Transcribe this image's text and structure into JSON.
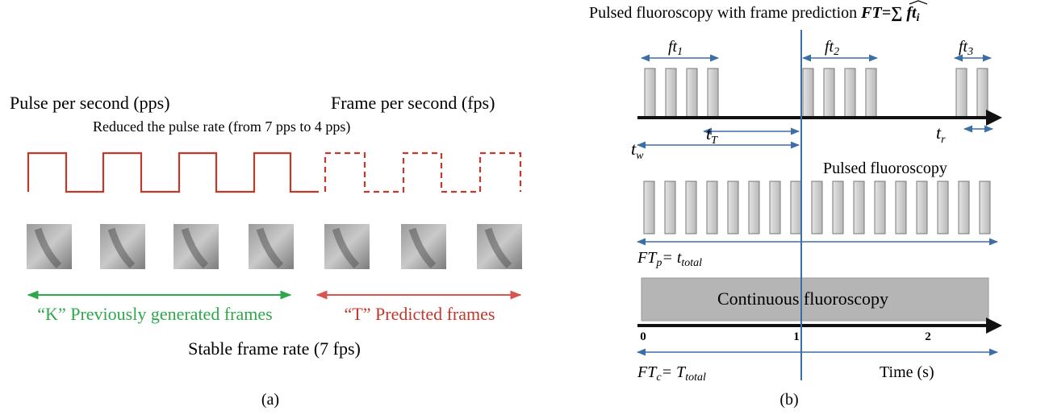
{
  "panel_a": {
    "label_pps": "Pulse per second (pps)",
    "label_fps": "Frame per second (fps)",
    "subtitle": "Reduced the pulse rate (from 7 pps to 4 pps)",
    "previous_frames": "“K” Previously generated frames",
    "predicted_frames": "“T” Predicted frames",
    "stable_rate": "Stable frame rate (7 fps)",
    "caption": "(a)"
  },
  "panel_b": {
    "title": "Pulsed fluoroscopy with frame prediction",
    "formula": {
      "lhs": "FT",
      "rhs": "=∑ ft",
      "sub": "i"
    },
    "ft1": {
      "base": "ft",
      "sub": "1"
    },
    "ft2": {
      "base": "ft",
      "sub": "2"
    },
    "ft3": {
      "base": "ft",
      "sub": "3"
    },
    "tT": {
      "base": "t",
      "sub": "T"
    },
    "tw": {
      "base": "t",
      "sub": "w"
    },
    "tr": {
      "base": "t",
      "sub": "r"
    },
    "pulsed_label": "Pulsed fluoroscopy",
    "ftp": {
      "base": "FT",
      "sub": "p",
      "rhs": "= t",
      "rhs_sub": "total"
    },
    "continuous_label": "Continuous fluoroscopy",
    "ticks": [
      "0",
      "1",
      "2"
    ],
    "ftc": {
      "base": "FT",
      "sub": "c",
      "rhs": "= T",
      "rhs_sub": "total"
    },
    "time_label": "Time (s)",
    "caption": "(b)"
  }
}
